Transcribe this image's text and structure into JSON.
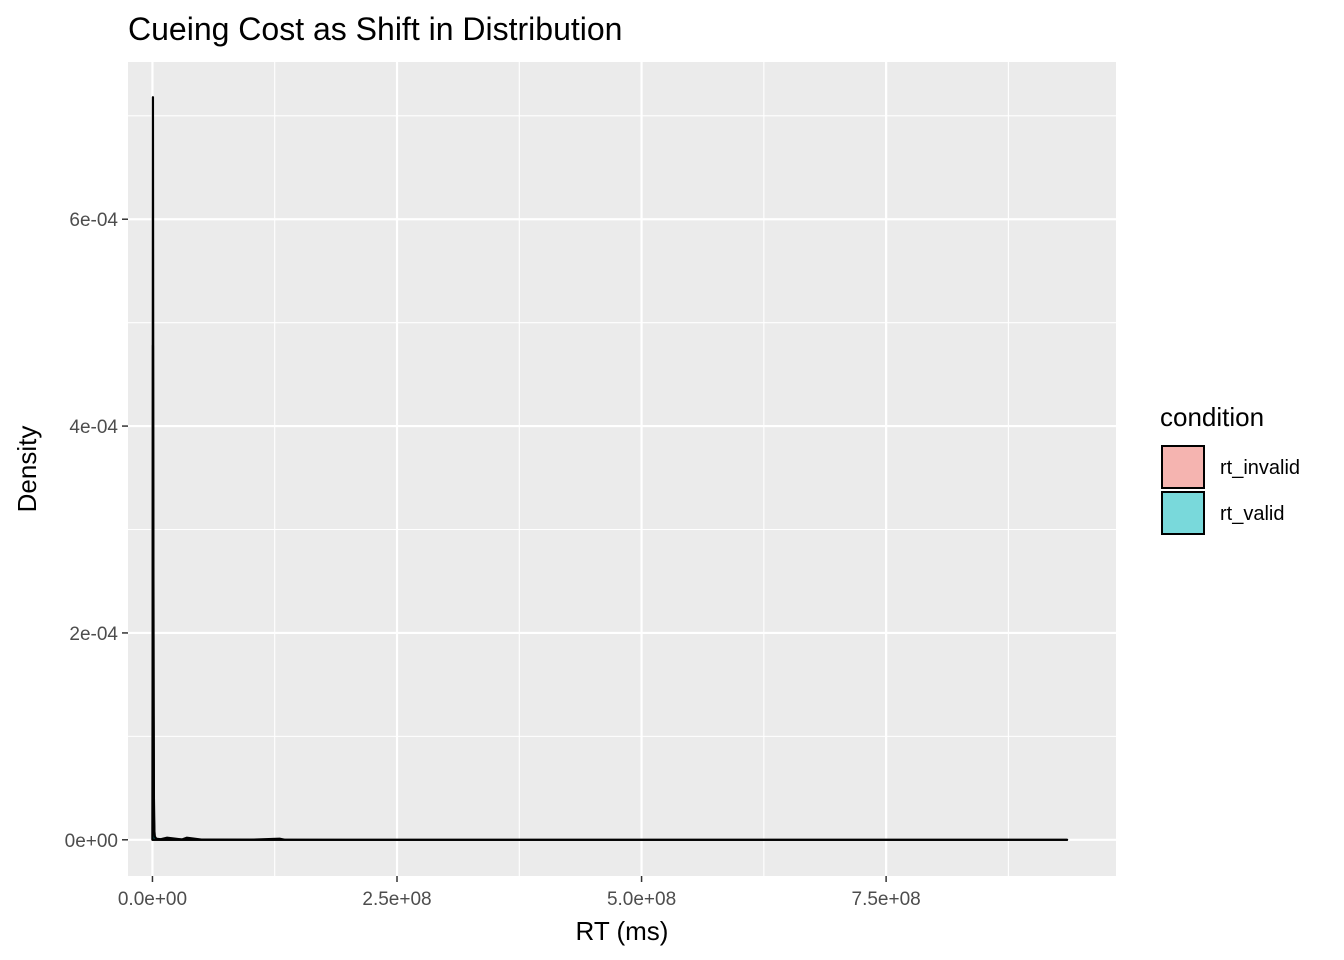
{
  "chart_data": {
    "type": "area",
    "title": "Cueing Cost as Shift in Distribution",
    "xlabel": "RT (ms)",
    "ylabel": "Density",
    "xlim": [
      -25000000,
      985000000
    ],
    "ylim": [
      -3.5e-05,
      0.000752
    ],
    "x_ticks": [
      0,
      250000000,
      500000000,
      750000000
    ],
    "x_tick_labels": [
      "0.0e+00",
      "2.5e+08",
      "5.0e+08",
      "7.5e+08"
    ],
    "y_ticks": [
      0,
      0.0002,
      0.0004,
      0.0006
    ],
    "y_tick_labels": [
      "0e+00",
      "2e-04",
      "4e-04",
      "6e-04"
    ],
    "grid": true,
    "legend_position": "right",
    "legend_title": "condition",
    "series": [
      {
        "name": "rt_invalid",
        "color": "#F8766D",
        "x": [
          0,
          500000,
          1000000,
          1500000,
          2000000,
          2500000,
          4000000,
          8000000,
          15000000,
          30000000,
          50000000,
          100000000,
          130000000,
          135000000,
          200000000,
          400000000,
          600000000,
          800000000,
          935000000
        ],
        "y": [
          0,
          0.000478,
          0.00012,
          2e-05,
          3e-06,
          1e-06,
          8e-07,
          5e-07,
          2e-06,
          3e-07,
          2e-07,
          1e-07,
          1e-06,
          1e-07,
          0,
          0,
          0,
          0,
          0
        ]
      },
      {
        "name": "rt_valid",
        "color": "#00BFC4",
        "x": [
          0,
          500000,
          1000000,
          1500000,
          2000000,
          2500000,
          4000000,
          8000000,
          15000000,
          30000000,
          35000000,
          50000000,
          100000000,
          200000000,
          400000000,
          600000000,
          800000000,
          935000000
        ],
        "y": [
          0,
          0.000718,
          0.00025,
          4e-05,
          8e-06,
          3e-06,
          1e-06,
          6e-07,
          4e-07,
          3e-07,
          2e-06,
          2e-07,
          1e-07,
          0,
          0,
          0,
          0,
          0
        ]
      }
    ]
  }
}
